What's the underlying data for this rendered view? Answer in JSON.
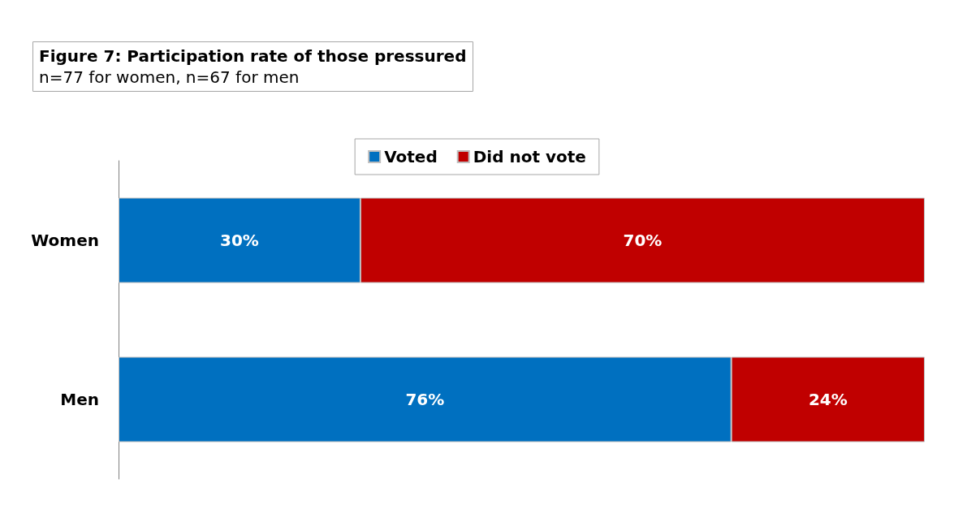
{
  "chart_data": {
    "type": "bar",
    "orientation": "horizontal",
    "stacked": true,
    "title": "Figure 7: Participation rate of those pressured",
    "subtitle": "n=77 for women, n=67 for men",
    "categories": [
      "Women",
      "Men"
    ],
    "series": [
      {
        "name": "Voted",
        "color": "#0070c0",
        "values": [
          30,
          76
        ],
        "value_labels": [
          "30%",
          "76%"
        ]
      },
      {
        "name": "Did not vote",
        "color": "#c00000",
        "values": [
          70,
          24
        ],
        "value_labels": [
          "70%",
          "24%"
        ]
      }
    ],
    "legend": "top"
  }
}
